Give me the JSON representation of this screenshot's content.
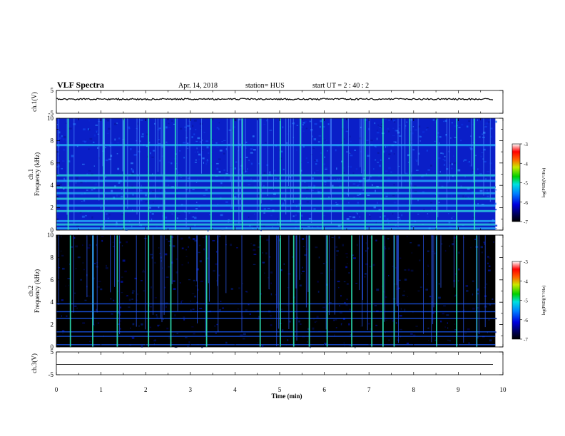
{
  "header": {
    "title": "VLF Spectra",
    "date": "Apr. 14, 2018",
    "station": "station= HUS",
    "start": "start  UT =   2 : 40 : 2"
  },
  "chart_data": [
    {
      "type": "line",
      "panel": "ch1-waveform",
      "ylabel": "ch.1(V)",
      "ylim": [
        -5,
        5
      ],
      "yticks": [
        "5",
        "-5"
      ],
      "xlim": [
        0,
        10
      ],
      "series": [
        {
          "values": [
            [
              0,
              1.2
            ],
            [
              9.8,
              1.2
            ]
          ]
        }
      ],
      "color": "#000000"
    },
    {
      "type": "heatmap",
      "panel": "ch1-spectrogram",
      "ylabel": "ch.1\nFrequency (kHz)",
      "ylim": [
        0,
        10
      ],
      "yticks": [
        "0",
        "2",
        "4",
        "6",
        "8",
        "10"
      ],
      "xlim": [
        0,
        10
      ],
      "data_extent_min": 9.83,
      "colorbar": {
        "label": "log(PSD)(V²/Hz)",
        "range": [
          -7,
          -3
        ],
        "ticks": [
          "-3",
          "-4",
          "-5",
          "-6",
          "-7"
        ]
      },
      "horizontal_lines_khz": [
        0.15,
        0.5,
        0.8,
        1.7,
        2.2,
        2.8,
        3.3,
        3.8,
        4.4,
        4.9,
        7.6
      ],
      "bursts_min": [
        0.25,
        1.05,
        1.5,
        2.05,
        2.4,
        2.65,
        3.45,
        3.95,
        4.15,
        4.55,
        5.0,
        5.45,
        5.95,
        6.4,
        6.9,
        7.3,
        7.9,
        8.5,
        8.95,
        9.35
      ]
    },
    {
      "type": "heatmap",
      "panel": "ch2-spectrogram",
      "ylabel": "ch.2\nFrequency (kHz)",
      "ylim": [
        0,
        10
      ],
      "yticks": [
        "0",
        "2",
        "4",
        "6",
        "8",
        "10"
      ],
      "xlim": [
        0,
        10
      ],
      "data_extent_min": 9.83,
      "colorbar": {
        "label": "log(PSD)(V²/Hz)",
        "range": [
          -7,
          -3
        ],
        "ticks": [
          "-3",
          "-4",
          "-5",
          "-6",
          "-7"
        ]
      },
      "horizontal_lines_khz": [
        0.15,
        0.9,
        1.3,
        2.5,
        3.1,
        3.8
      ],
      "bursts_min": [
        0.3,
        0.8,
        1.35,
        2.05,
        2.55,
        3.35,
        4.55,
        5.0,
        5.3,
        5.65,
        6.05,
        6.6,
        7.05,
        7.3,
        7.55,
        8.5,
        8.95,
        9.4
      ]
    },
    {
      "type": "line",
      "panel": "ch3-waveform",
      "ylabel": "ch.3(V)",
      "ylim": [
        -5,
        5
      ],
      "yticks": [
        "5",
        "-5"
      ],
      "xlim": [
        0,
        10
      ],
      "xlabel": "Time (min)",
      "xticks": [
        "0",
        "1",
        "2",
        "3",
        "4",
        "5",
        "6",
        "7",
        "8",
        "9",
        "10"
      ],
      "series": [
        {
          "values": [
            [
              0,
              -0.5
            ],
            [
              9.8,
              -0.5
            ]
          ]
        }
      ],
      "color": "#000000"
    }
  ]
}
